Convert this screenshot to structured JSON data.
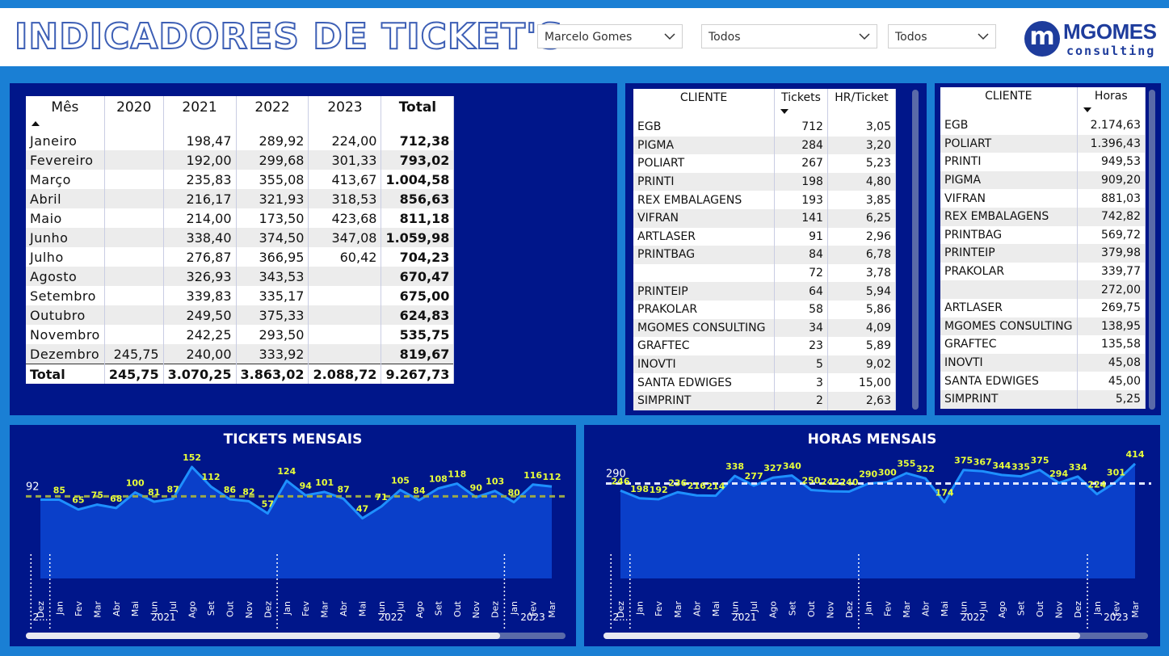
{
  "header": {
    "title": "INDICADORES DE TICKET'S",
    "filters": [
      {
        "value": "Marcelo Gomes"
      },
      {
        "value": "Todos"
      },
      {
        "value": "Todos"
      }
    ],
    "logo": {
      "mark": "m",
      "name": "MGOMES",
      "sub": "consulting"
    }
  },
  "year_table": {
    "headers": [
      "Mês",
      "2020",
      "2021",
      "2022",
      "2023",
      "Total"
    ],
    "rows": [
      [
        "Janeiro",
        "",
        "198,47",
        "289,92",
        "224,00",
        "712,38"
      ],
      [
        "Fevereiro",
        "",
        "192,00",
        "299,68",
        "301,33",
        "793,02"
      ],
      [
        "Março",
        "",
        "235,83",
        "355,08",
        "413,67",
        "1.004,58"
      ],
      [
        "Abril",
        "",
        "216,17",
        "321,93",
        "318,53",
        "856,63"
      ],
      [
        "Maio",
        "",
        "214,00",
        "173,50",
        "423,68",
        "811,18"
      ],
      [
        "Junho",
        "",
        "338,40",
        "374,50",
        "347,08",
        "1.059,98"
      ],
      [
        "Julho",
        "",
        "276,87",
        "366,95",
        "60,42",
        "704,23"
      ],
      [
        "Agosto",
        "",
        "326,93",
        "343,53",
        "",
        "670,47"
      ],
      [
        "Setembro",
        "",
        "339,83",
        "335,17",
        "",
        "675,00"
      ],
      [
        "Outubro",
        "",
        "249,50",
        "375,33",
        "",
        "624,83"
      ],
      [
        "Novembro",
        "",
        "242,25",
        "293,50",
        "",
        "535,75"
      ],
      [
        "Dezembro",
        "245,75",
        "240,00",
        "333,92",
        "",
        "819,67"
      ]
    ],
    "total_row": [
      "Total",
      "245,75",
      "3.070,25",
      "3.863,02",
      "2.088,72",
      "9.267,73"
    ]
  },
  "tickets_table": {
    "headers": [
      "CLIENTE",
      "Tickets",
      "HR/Ticket"
    ],
    "rows": [
      [
        "EGB",
        "712",
        "3,05"
      ],
      [
        "PIGMA",
        "284",
        "3,20"
      ],
      [
        "POLIART",
        "267",
        "5,23"
      ],
      [
        "PRINTI",
        "198",
        "4,80"
      ],
      [
        "REX EMBALAGENS",
        "193",
        "3,85"
      ],
      [
        "VIFRAN",
        "141",
        "6,25"
      ],
      [
        "ARTLASER",
        "91",
        "2,96"
      ],
      [
        "PRINTBAG",
        "84",
        "6,78"
      ],
      [
        "",
        "72",
        "3,78"
      ],
      [
        "PRINTEIP",
        "64",
        "5,94"
      ],
      [
        "PRAKOLAR",
        "58",
        "5,86"
      ],
      [
        "MGOMES CONSULTING",
        "34",
        "4,09"
      ],
      [
        "GRAFTEC",
        "23",
        "5,89"
      ],
      [
        "INOVTI",
        "5",
        "9,02"
      ],
      [
        "SANTA EDWIGES",
        "3",
        "15,00"
      ],
      [
        "SIMPRINT",
        "2",
        "2,63"
      ]
    ]
  },
  "hours_table": {
    "headers": [
      "CLIENTE",
      "Horas"
    ],
    "rows": [
      [
        "EGB",
        "2.174,63"
      ],
      [
        "POLIART",
        "1.396,43"
      ],
      [
        "PRINTI",
        "949,53"
      ],
      [
        "PIGMA",
        "909,20"
      ],
      [
        "VIFRAN",
        "881,03"
      ],
      [
        "REX EMBALAGENS",
        "742,82"
      ],
      [
        "PRINTBAG",
        "569,72"
      ],
      [
        "PRINTEIP",
        "379,98"
      ],
      [
        "PRAKOLAR",
        "339,77"
      ],
      [
        "",
        "272,00"
      ],
      [
        "ARTLASER",
        "269,75"
      ],
      [
        "MGOMES CONSULTING",
        "138,95"
      ],
      [
        "GRAFTEC",
        "135,58"
      ],
      [
        "INOVTI",
        "45,08"
      ],
      [
        "SANTA EDWIGES",
        "45,00"
      ],
      [
        "SIMPRINT",
        "5,25"
      ]
    ]
  },
  "chart_data": [
    {
      "type": "area",
      "title": "TICKETS MENSAIS",
      "x": [
        "Dez",
        "Jan",
        "Fev",
        "Mar",
        "Abr",
        "Mai",
        "Jun",
        "Jul",
        "Ago",
        "Set",
        "Out",
        "Nov",
        "Dez",
        "Jan",
        "Fev",
        "Mar",
        "Abr",
        "Mai",
        "Jun",
        "Jul",
        "Ago",
        "Set",
        "Out",
        "Nov",
        "Dez",
        "Jan",
        "Fev",
        "Mar"
      ],
      "year_groups": [
        {
          "label": "2...",
          "count": 1
        },
        {
          "label": "2021",
          "count": 12
        },
        {
          "label": "2022",
          "count": 12
        },
        {
          "label": "2023",
          "count": 3
        }
      ],
      "values": [
        null,
        85,
        65,
        75,
        68,
        100,
        81,
        87,
        152,
        112,
        86,
        82,
        57,
        124,
        94,
        101,
        87,
        47,
        71,
        105,
        84,
        108,
        118,
        90,
        103,
        80,
        116,
        112
      ],
      "average": 92,
      "average_label": "92",
      "line_color": "#1e90ff",
      "area_color": "#0a3fc9",
      "avg_color": "#9aa84a",
      "label_color": "#e8ff3a"
    },
    {
      "type": "area",
      "title": "HORAS MENSAIS",
      "x": [
        "Dez",
        "Jan",
        "Fev",
        "Mar",
        "Abr",
        "Mai",
        "Jun",
        "Jul",
        "Ago",
        "Set",
        "Out",
        "Nov",
        "Dez",
        "Jan",
        "Fev",
        "Mar",
        "Abr",
        "Mai",
        "Jun",
        "Jul",
        "Ago",
        "Set",
        "Out",
        "Nov",
        "Dez",
        "Jan",
        "Fev",
        "Mar"
      ],
      "year_groups": [
        {
          "label": "2...",
          "count": 1
        },
        {
          "label": "2021",
          "count": 12
        },
        {
          "label": "2022",
          "count": 12
        },
        {
          "label": "2023",
          "count": 3
        }
      ],
      "values": [
        246,
        198,
        192,
        236,
        216,
        214,
        338,
        277,
        327,
        340,
        250,
        242,
        240,
        290,
        300,
        355,
        322,
        174,
        375,
        367,
        344,
        335,
        375,
        294,
        334,
        224,
        301,
        414
      ],
      "average": 290,
      "average_label": "290",
      "line_color": "#1e90ff",
      "area_color": "#0a3fc9",
      "avg_color": "#dfe6ff",
      "label_color": "#e8ff3a"
    }
  ],
  "colors": {
    "background": "#1a7fd4",
    "panel": "#00168a",
    "header": "#ffffff"
  }
}
